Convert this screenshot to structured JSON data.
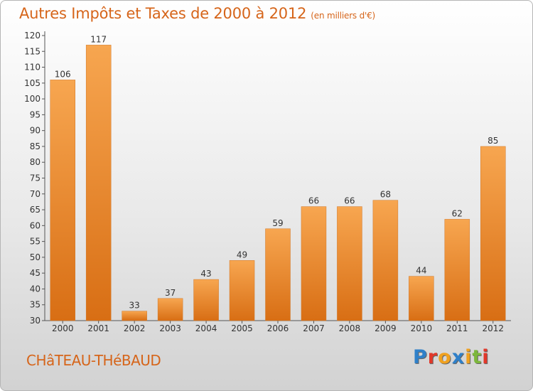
{
  "header": {
    "title": "Autres Impôts et Taxes de 2000 à 2012",
    "unit": "(en milliers d'€)"
  },
  "footer": {
    "place": "CHâTEAU-THéBAUD",
    "logo": [
      "P",
      "r",
      "o",
      "x",
      "i",
      "t",
      "i"
    ]
  },
  "colors": {
    "bar_light": "#f7a650",
    "bar_dark": "#d86e14",
    "accent": "#d6651a"
  },
  "chart_data": {
    "type": "bar",
    "title": "Autres Impôts et Taxes de 2000 à 2012",
    "xlabel": "",
    "ylabel": "",
    "categories": [
      "2000",
      "2001",
      "2002",
      "2003",
      "2004",
      "2005",
      "2006",
      "2007",
      "2008",
      "2009",
      "2010",
      "2011",
      "2012"
    ],
    "values": [
      106,
      117,
      33,
      37,
      43,
      49,
      59,
      66,
      66,
      68,
      44,
      62,
      85
    ],
    "ylim": [
      30,
      120
    ],
    "yticks": [
      30,
      35,
      40,
      45,
      50,
      55,
      60,
      65,
      70,
      75,
      80,
      85,
      90,
      95,
      100,
      105,
      110,
      115,
      120
    ],
    "grid": false,
    "legend": "none"
  }
}
